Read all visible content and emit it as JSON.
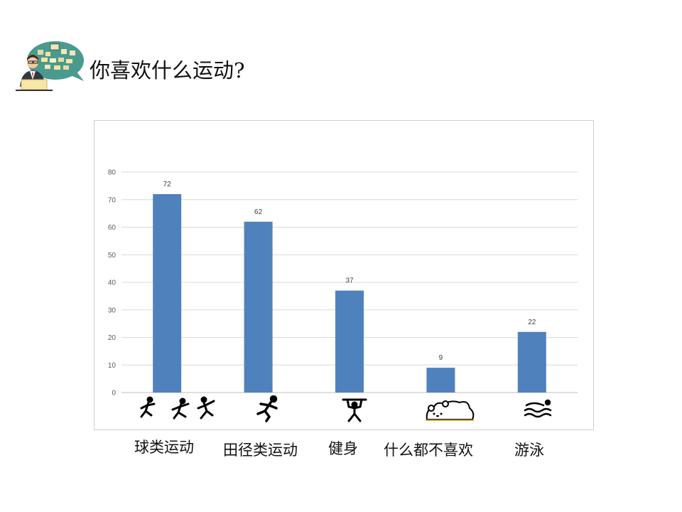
{
  "header": {
    "title": "你喜欢什么运动?",
    "icon": "teacher-at-laptop-with-speech-bubble"
  },
  "chart_data": {
    "type": "bar",
    "categories": [
      "球类运动",
      "田径类运动",
      "健身",
      "什么都不喜欢",
      "游泳"
    ],
    "values": [
      72,
      62,
      37,
      9,
      22
    ],
    "data_labels": [
      "72",
      "62",
      "37",
      "9",
      "22"
    ],
    "title": "",
    "xlabel": "",
    "ylabel": "",
    "ylim": [
      0,
      80
    ],
    "yticks": [
      "0",
      "10",
      "20",
      "30",
      "40",
      "50",
      "60",
      "70",
      "80"
    ],
    "grid": true,
    "legend": "none",
    "bar_color": "#4f81bd",
    "pictograms": [
      "ball-sports-icons",
      "running-icon",
      "weightlifting-icon",
      "sleeping-bear-icon",
      "swimming-icon"
    ]
  }
}
